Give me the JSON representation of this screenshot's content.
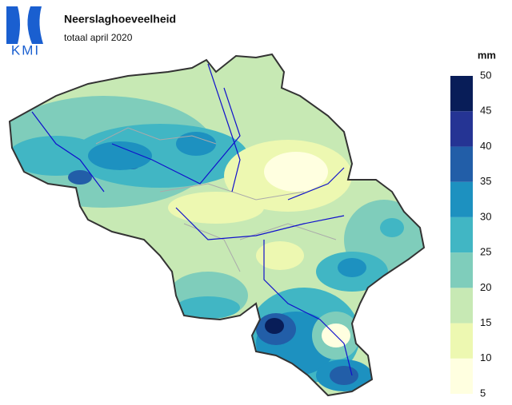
{
  "logo": {
    "text": "KMI"
  },
  "header": {
    "title": "Neerslaghoeveelheid",
    "subtitle": "totaal april 2020"
  },
  "legend": {
    "unit": "mm",
    "bins": [
      5,
      10,
      15,
      20,
      25,
      30,
      35,
      40,
      45,
      50
    ],
    "colors": [
      "#ffffe0",
      "#edf8b1",
      "#c7e9b4",
      "#7fcdbb",
      "#41b6c4",
      "#1d91c0",
      "#225ea8",
      "#253494",
      "#081d58"
    ]
  }
}
